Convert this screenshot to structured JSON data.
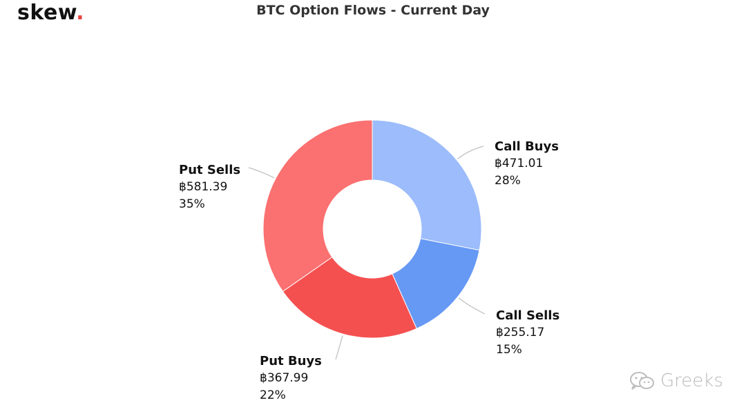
{
  "logo": {
    "text": "skew",
    "dot": "."
  },
  "watermark": {
    "text": "Greeks",
    "icon": "wechat-icon"
  },
  "colors": {
    "call_buys": "#9cbcfb",
    "call_sells": "#6699f4",
    "put_buys": "#f55050",
    "put_sells": "#fb7070",
    "leader": "#c8c8c8",
    "logo_dot": "#e8433f"
  },
  "chart_data": {
    "type": "pie",
    "title": "BTC Option Flows - Current Day",
    "donut": true,
    "slices": [
      {
        "name": "Call Buys",
        "value": 471.01,
        "value_label": "฿471.01",
        "percent_label": "28%",
        "color": "#9cbcfb"
      },
      {
        "name": "Call Sells",
        "value": 255.17,
        "value_label": "฿255.17",
        "percent_label": "15%",
        "color": "#6699f4"
      },
      {
        "name": "Put Buys",
        "value": 367.99,
        "value_label": "฿367.99",
        "percent_label": "22%",
        "color": "#f55050"
      },
      {
        "name": "Put Sells",
        "value": 581.39,
        "value_label": "฿581.39",
        "percent_label": "35%",
        "color": "#fb7070"
      }
    ]
  }
}
